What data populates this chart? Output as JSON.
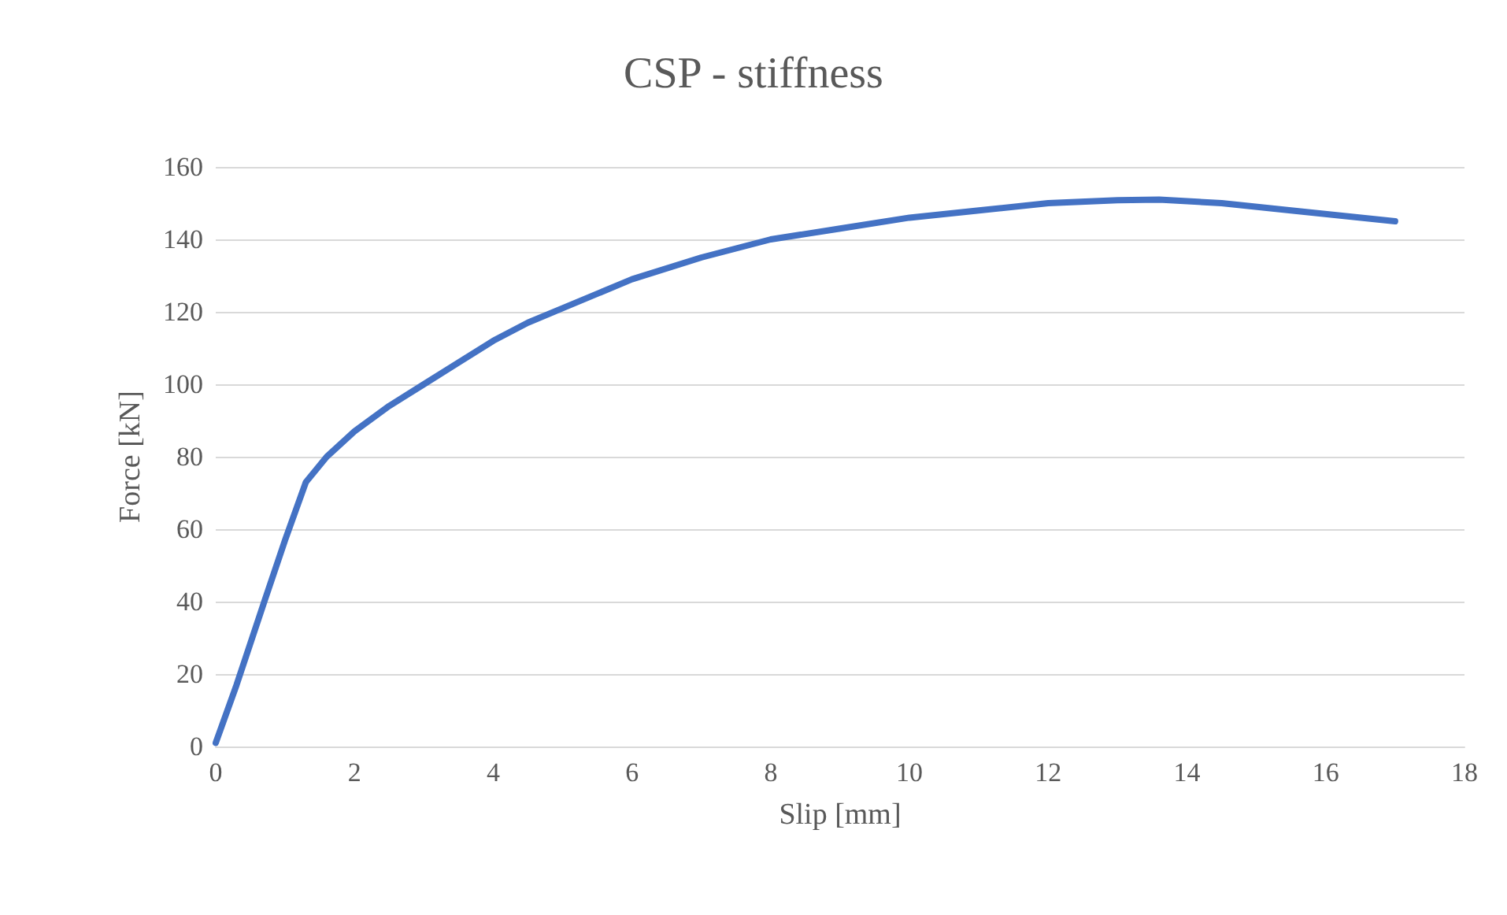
{
  "chart_data": {
    "type": "line",
    "title": "CSP - stiffness",
    "xlabel": "Slip [mm]",
    "ylabel": "Force [kN]",
    "x": [
      0,
      0.3,
      0.7,
      1.0,
      1.3,
      1.6,
      2,
      2.5,
      3,
      3.5,
      4,
      4.5,
      5,
      6,
      7,
      8,
      9,
      10,
      11,
      12,
      13,
      13.6,
      14.5,
      15.5,
      17
    ],
    "series": [
      {
        "color": "#4472c4",
        "values": [
          1,
          17,
          40,
          57,
          73,
          80,
          87,
          94,
          100,
          106,
          112,
          117,
          121,
          129,
          135,
          140,
          143,
          146,
          148,
          150,
          150.8,
          151,
          150,
          148,
          145
        ]
      }
    ],
    "xlim": [
      0,
      18
    ],
    "xticks": [
      0,
      2,
      4,
      6,
      8,
      10,
      12,
      14,
      16,
      18
    ],
    "ylim": [
      0,
      160
    ],
    "yticks": [
      0,
      20,
      40,
      60,
      80,
      100,
      120,
      140,
      160
    ],
    "grid": "y",
    "marker": "none",
    "line_style": "solid"
  }
}
